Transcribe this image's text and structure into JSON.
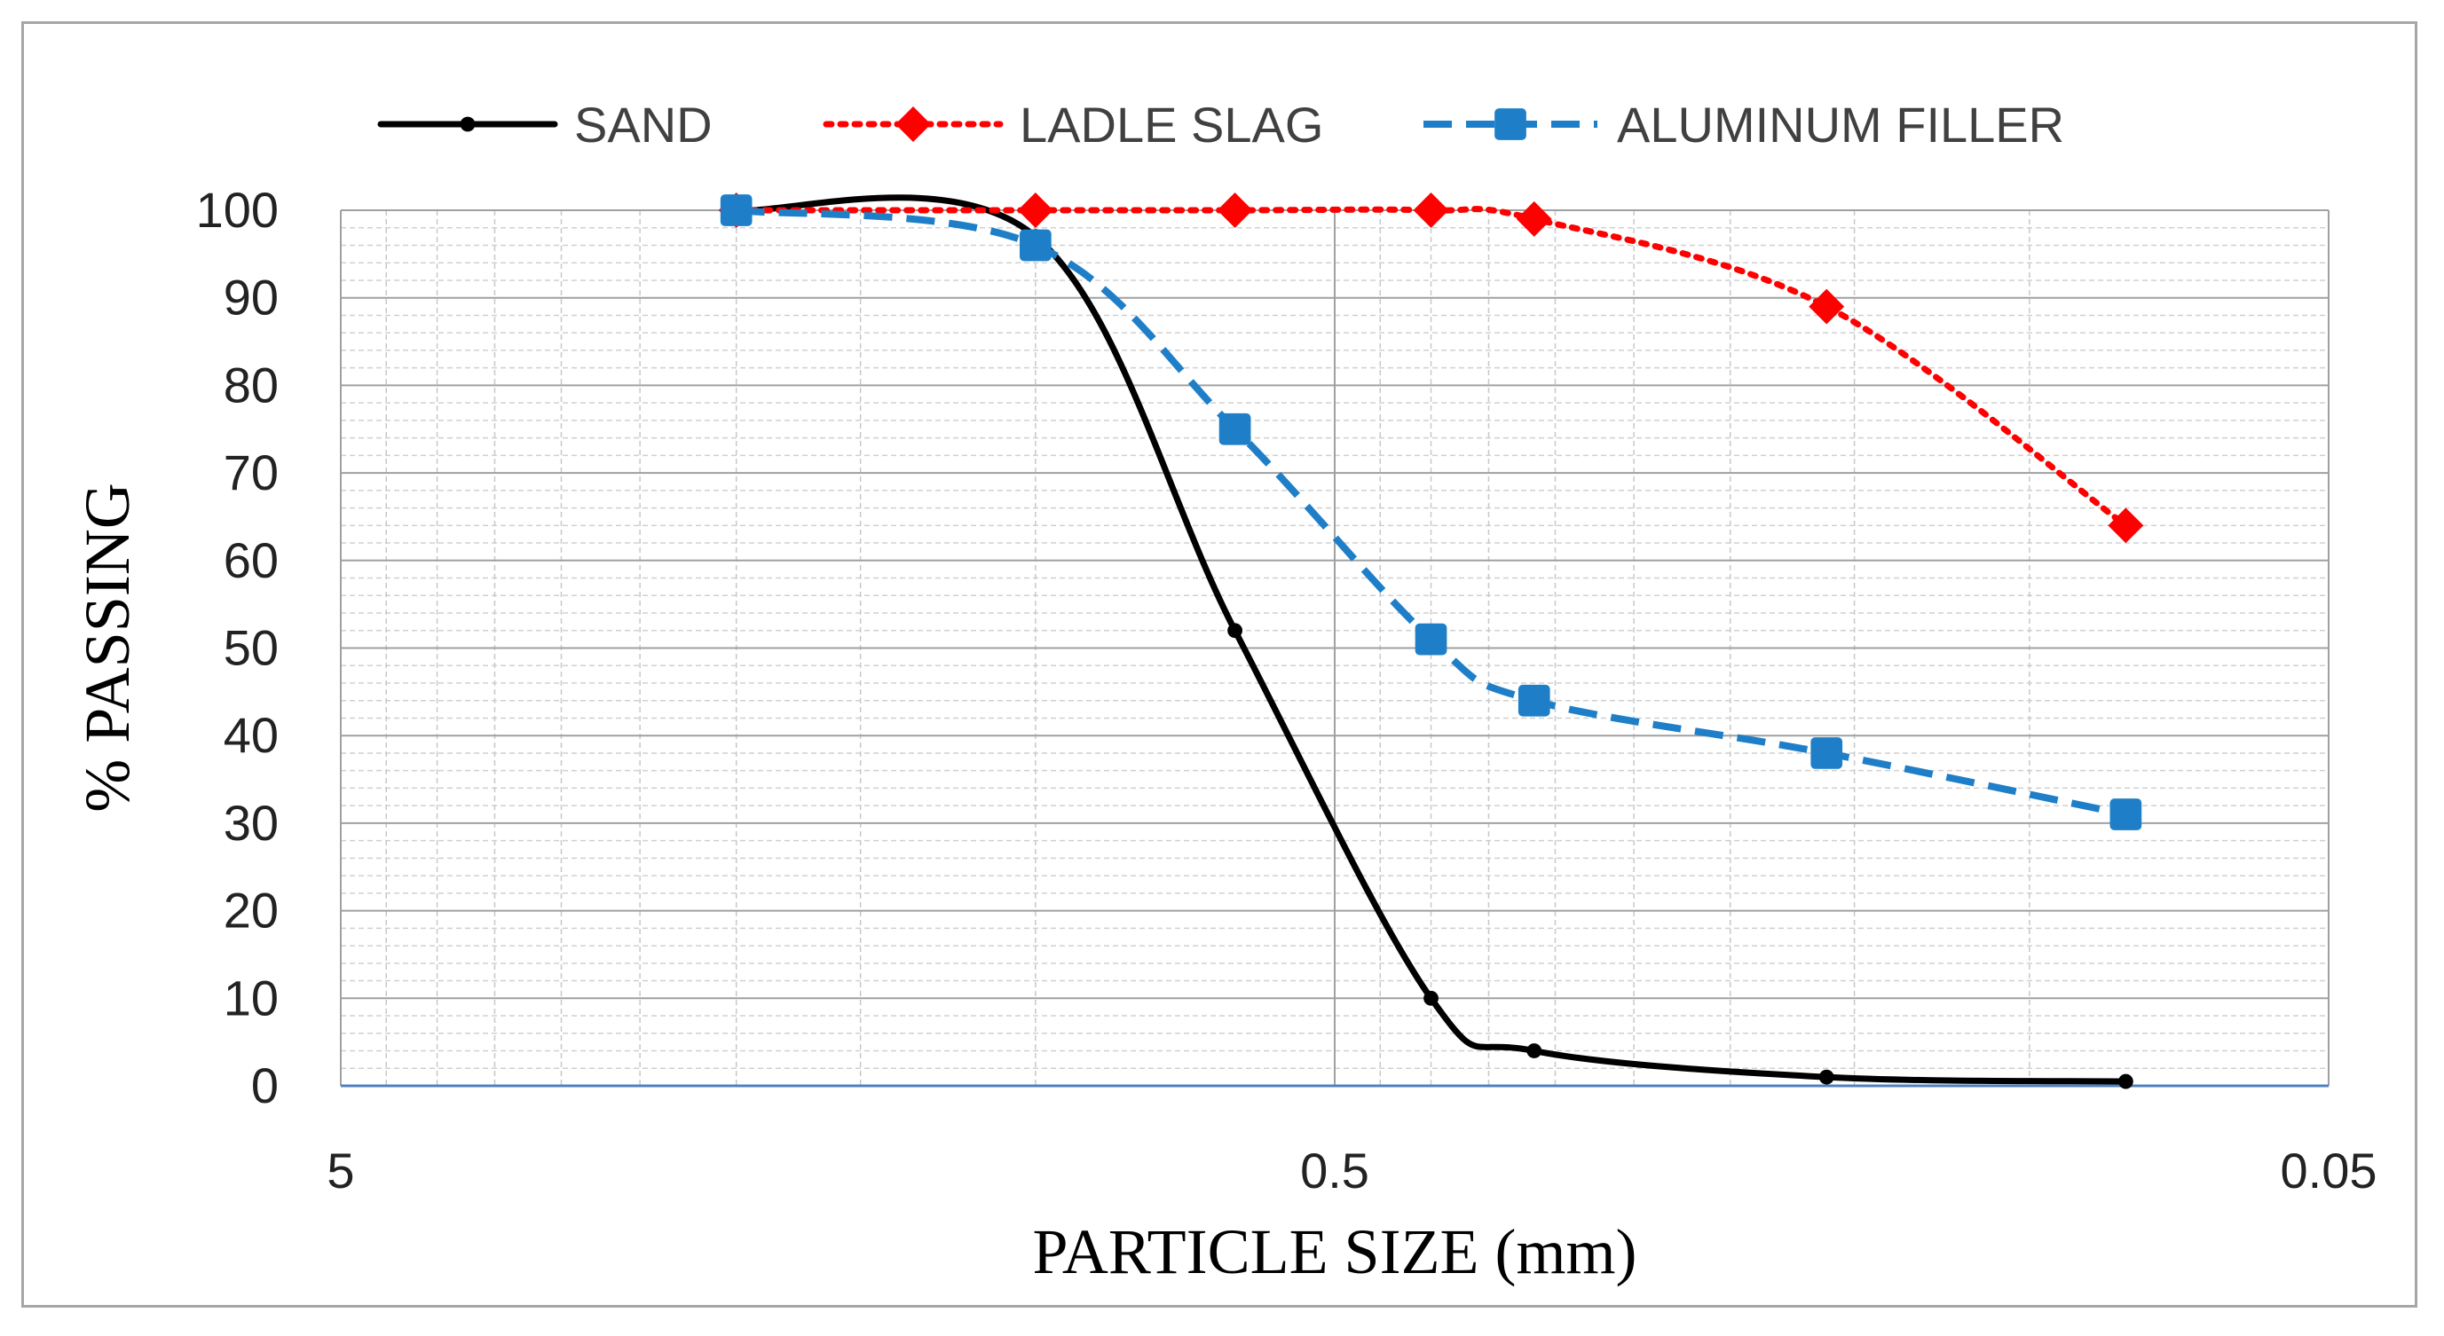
{
  "chart_data": {
    "type": "line",
    "title": "",
    "xlabel": "PARTICLE SIZE (mm)",
    "ylabel": "% PASSING",
    "x_scale": "log",
    "x_reversed": true,
    "xlim": [
      5,
      0.05
    ],
    "ylim": [
      0,
      100
    ],
    "x_ticks": [
      5,
      0.5,
      0.05
    ],
    "x_tick_labels": [
      "5",
      "0.5",
      "0.05"
    ],
    "y_ticks": [
      0,
      10,
      20,
      30,
      40,
      50,
      60,
      70,
      80,
      90,
      100
    ],
    "y_tick_labels": [
      "0",
      "10",
      "20",
      "30",
      "40",
      "50",
      "60",
      "70",
      "80",
      "90",
      "100"
    ],
    "grid": true,
    "legend_position": "top",
    "series": [
      {
        "name": "SAND",
        "color": "#000000",
        "dash": "solid",
        "marker": "circle",
        "x": [
          2.0,
          1.0,
          0.63,
          0.4,
          0.315,
          0.16,
          0.08
        ],
        "y": [
          100,
          97,
          52,
          10,
          4,
          1,
          0.5
        ]
      },
      {
        "name": "LADLE SLAG",
        "color": "#ff0000",
        "dash": "dotted",
        "marker": "diamond",
        "x": [
          2.0,
          1.0,
          0.63,
          0.4,
          0.315,
          0.16,
          0.08
        ],
        "y": [
          100,
          100,
          100,
          100,
          99,
          89,
          64
        ]
      },
      {
        "name": "ALUMINUM FILLER",
        "color": "#1e7fc8",
        "dash": "dashed",
        "marker": "square",
        "x": [
          2.0,
          1.0,
          0.63,
          0.4,
          0.315,
          0.16,
          0.08
        ],
        "y": [
          100,
          96,
          75,
          51,
          44,
          38,
          31
        ]
      }
    ]
  }
}
